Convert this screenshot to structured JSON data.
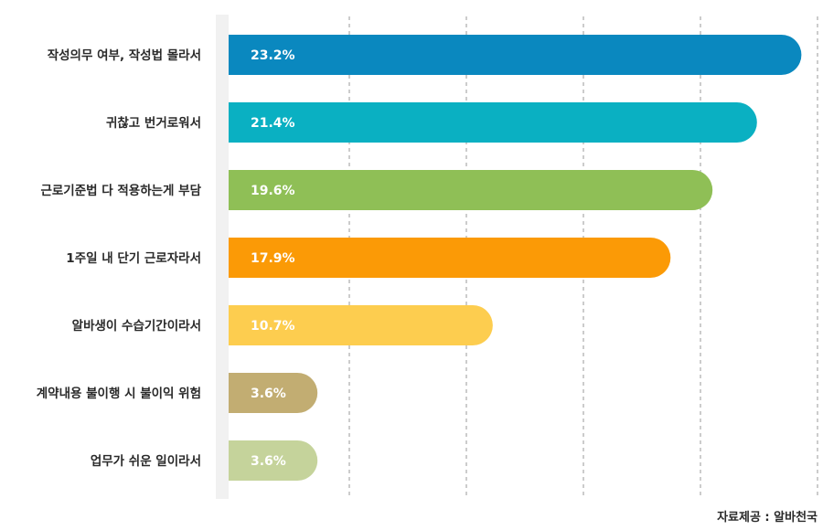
{
  "chart_data": {
    "type": "bar",
    "orientation": "horizontal",
    "categories": [
      "작성의무 여부, 작성법 몰라서",
      "귀찮고 번거로워서",
      "근로기준법 다 적용하는게 부담",
      "1주일 내 단기 근로자라서",
      "알바생이 수습기간이라서",
      "계약내용 불이행 시 불이익 위험",
      "업무가 쉬운 일이라서"
    ],
    "values": [
      23.2,
      21.4,
      19.6,
      17.9,
      10.7,
      3.6,
      3.6
    ],
    "value_labels": [
      "23.2%",
      "21.4%",
      "19.6%",
      "17.9%",
      "10.7%",
      "3.6%",
      "3.6%"
    ],
    "colors": [
      "#0a88bf",
      "#0ab0c2",
      "#8fbf56",
      "#fb9a06",
      "#fdcd4f",
      "#c2ad72",
      "#c5d39b"
    ],
    "xlim": [
      0,
      24
    ],
    "grid": true
  },
  "source": "자료제공 : 알바천국"
}
